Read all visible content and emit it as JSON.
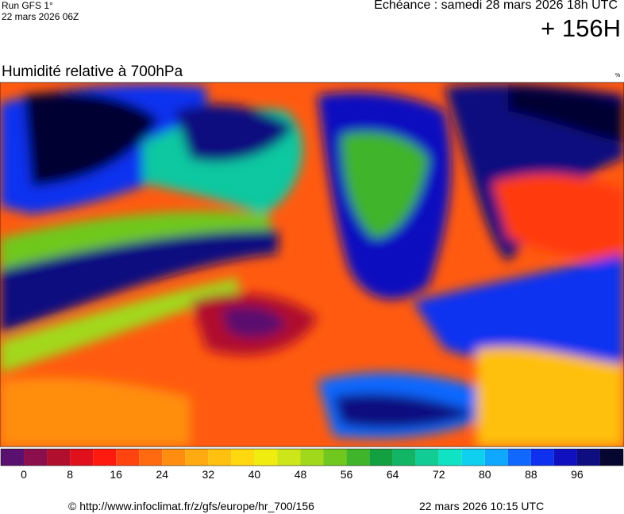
{
  "header": {
    "run": "Run GFS 1°",
    "run_date": "22 mars 2026 06Z",
    "forecast": "Échéance : samedi 28 mars 2026 18h UTC",
    "lead": "+ 156H"
  },
  "map": {
    "title": "Humidité relative à 700hPa",
    "unit": "%"
  },
  "colorbar": {
    "colors": [
      "#5a106e",
      "#8a0f4c",
      "#b0102e",
      "#e0101c",
      "#ff1a10",
      "#ff4410",
      "#ff6a10",
      "#ff8e10",
      "#ffaa10",
      "#ffc010",
      "#ffd810",
      "#f0ec10",
      "#cce61a",
      "#a2d81c",
      "#70c81e",
      "#40b42a",
      "#12a040",
      "#12b466",
      "#12cc96",
      "#10e2c4",
      "#10d0f0",
      "#10a8ff",
      "#1068ff",
      "#1030f0",
      "#1010c0",
      "#0e0e80",
      "#060630"
    ],
    "ticks": [
      0,
      8,
      16,
      24,
      32,
      40,
      48,
      56,
      64,
      72,
      80,
      88,
      96
    ]
  },
  "footer": {
    "url": "© http://www.infoclimat.fr/z/gfs/europe/hr_700/156",
    "generated": "22 mars 2026 10:15 UTC"
  }
}
